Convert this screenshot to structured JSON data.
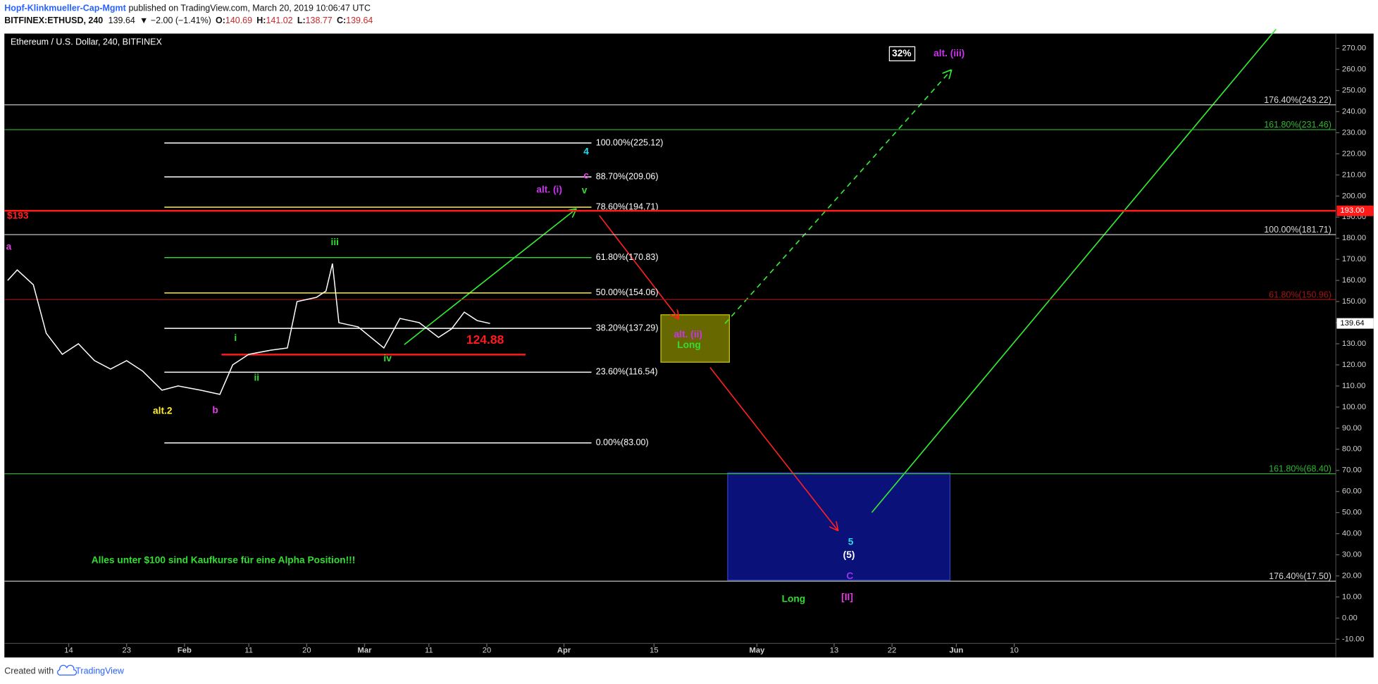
{
  "header": {
    "author": "Hopf-Klinkmueller-Cap-Mgmt",
    "published": "published on TradingView.com, March 20, 2019 10:06:47 UTC",
    "symbol": "BITFINEX:ETHUSD, 240",
    "last": 139.64,
    "change": "▼ −2.00 (−1.41%)",
    "ohlc": [
      {
        "label": "O:",
        "value": 140.69
      },
      {
        "label": "H:",
        "value": 141.02
      },
      {
        "label": "L:",
        "value": 138.77
      },
      {
        "label": "C:",
        "value": 139.64
      }
    ]
  },
  "chart_data": {
    "type": "line",
    "title": "Ethereum / U.S. Dollar, 240, BITFINEX",
    "x": [
      4.5,
      6,
      8.5,
      10.5,
      13,
      15.5,
      18,
      20.5,
      23,
      25.5,
      28.5,
      31,
      34.5,
      37.5,
      39.5,
      42,
      45.5,
      48,
      49.5,
      52.5,
      54,
      55,
      56,
      59,
      63,
      65.5,
      68.5,
      71.5,
      73.5,
      75.5,
      77.5,
      79.5
    ],
    "series": [
      {
        "color": "#ffffff",
        "values": [
          160,
          165,
          158,
          135,
          125,
          130,
          122,
          118,
          122,
          117,
          108,
          110,
          108,
          106,
          120,
          125,
          127,
          128,
          150,
          152,
          155,
          168,
          140,
          138,
          128,
          142,
          140,
          133,
          137,
          145,
          141,
          139.64
        ]
      }
    ],
    "xlim": [
      4,
      211
    ],
    "xticks": [
      14,
      23,
      {
        "value": 32,
        "label": "Feb"
      },
      {
        "value": 42,
        "label": "11"
      },
      {
        "value": 51,
        "label": "20"
      },
      {
        "value": 60,
        "label": "Mar"
      },
      {
        "value": 70,
        "label": "11"
      },
      {
        "value": 79,
        "label": "20"
      },
      {
        "value": 91,
        "label": "Apr"
      },
      {
        "value": 105,
        "label": "15"
      },
      {
        "value": 121,
        "label": "May"
      },
      {
        "value": 133,
        "label": "13"
      },
      {
        "value": 142,
        "label": "22"
      },
      {
        "value": 152,
        "label": "Jun"
      },
      {
        "value": 161,
        "label": "10"
      }
    ],
    "ylim": [
      -12,
      277
    ],
    "yticks": [
      {
        "value": -10,
        "label": "-10.00"
      },
      {
        "value": 0,
        "label": "0.00"
      },
      {
        "value": 10,
        "label": "10.00"
      },
      {
        "value": 20,
        "label": "20.00"
      },
      {
        "value": 30,
        "label": "30.00"
      },
      {
        "value": 40,
        "label": "40.00"
      },
      {
        "value": 50,
        "label": "50.00"
      },
      {
        "value": 60,
        "label": "60.00"
      },
      {
        "value": 70,
        "label": "70.00"
      },
      {
        "value": 80,
        "label": "80.00"
      },
      {
        "value": 90,
        "label": "90.00"
      },
      {
        "value": 100,
        "label": "100.00"
      },
      {
        "value": 110,
        "label": "110.00"
      },
      {
        "value": 120,
        "label": "120.00"
      },
      {
        "value": 130,
        "label": "130.00"
      },
      {
        "value": 140,
        "label": "140.00"
      },
      {
        "value": 150,
        "label": "150.00"
      },
      {
        "value": 160,
        "label": "160.00"
      },
      {
        "value": 170,
        "label": "170.00"
      },
      {
        "value": 180,
        "label": "180.00"
      },
      {
        "value": 190,
        "label": "190.00"
      },
      {
        "value": 200,
        "label": "200.00"
      },
      {
        "value": 210,
        "label": "210.00"
      },
      {
        "value": 220,
        "label": "220.00"
      },
      {
        "value": 230,
        "label": "230.00"
      },
      {
        "value": 240,
        "label": "240.00"
      },
      {
        "value": 250,
        "label": "250.00"
      },
      {
        "value": 260,
        "label": "260.00"
      },
      {
        "value": 270,
        "label": "270.00"
      }
    ],
    "price_line": {
      "value": 193,
      "label": "193.00",
      "color": "#ff1a1a"
    },
    "last_price": {
      "value": 139.64,
      "label": "139.64"
    },
    "levels": [
      {
        "value": 243.22,
        "label": "176.40%(243.22)",
        "color": "#d8d8d8"
      },
      {
        "value": 231.46,
        "label": "161.80%(231.46)",
        "color": "#2eb82e"
      },
      {
        "value": 181.71,
        "label": "100.00%(181.71)",
        "color": "#d8d8d8"
      },
      {
        "value": 150.96,
        "label": "61.80%(150.96)",
        "color": "#a31515"
      },
      {
        "value": 68.4,
        "label": "161.80%(68.40)",
        "color": "#2eb82e"
      },
      {
        "value": 17.5,
        "label": "176.40%(17.50)",
        "color": "#d8d8d8"
      }
    ],
    "fib_levels": [
      {
        "value": 225.12,
        "label": "100.00%(225.12)",
        "color": "#ffffff"
      },
      {
        "value": 209.06,
        "label": "88.70%(209.06)",
        "color": "#ffffff"
      },
      {
        "value": 194.71,
        "label": "78.60%(194.71)",
        "color": "#ffee33"
      },
      {
        "value": 170.83,
        "label": "61.80%(170.83)",
        "color": "#33dd33"
      },
      {
        "value": 154.06,
        "label": "50.00%(154.06)",
        "color": "#ffee33"
      },
      {
        "value": 137.29,
        "label": "38.20%(137.29)",
        "color": "#ffffff"
      },
      {
        "value": 116.54,
        "label": "23.60%(116.54)",
        "color": "#ffffff"
      },
      {
        "value": 83.0,
        "label": "0.00%(83.00)",
        "color": "#ffffff"
      }
    ],
    "support": {
      "value": 124.88,
      "color": "#ff1a1a"
    },
    "annotations": [
      {
        "text": "$193",
        "color": "#ff2020"
      },
      {
        "text": "a",
        "color": "#e040e0"
      },
      {
        "text": "alt.2",
        "color": "#ffee33"
      },
      {
        "text": "b",
        "color": "#e040e0"
      },
      {
        "text": "i",
        "color": "#33dd33"
      },
      {
        "text": "ii",
        "color": "#33dd33"
      },
      {
        "text": "iii",
        "color": "#33dd33"
      },
      {
        "text": "iv",
        "color": "#33dd33"
      },
      {
        "text": "v",
        "color": "#33dd33"
      },
      {
        "text": "4",
        "color": "#22ddee"
      },
      {
        "text": "c",
        "color": "#e040e0"
      },
      {
        "text": "alt. (i)",
        "color": "#cc33ee"
      },
      {
        "text": "alt. (ii)",
        "color": "#cc33ee"
      },
      {
        "text": "Long",
        "color": "#33dd33"
      },
      {
        "text": "32%",
        "color": "#ffffff"
      },
      {
        "text": "alt. (iii)",
        "color": "#cc33ee"
      },
      {
        "text": "5",
        "color": "#22ddee"
      },
      {
        "text": "(5)",
        "color": "#ffffff"
      },
      {
        "text": "C",
        "color": "#9933ee"
      },
      {
        "text": "Long",
        "color": "#33dd33"
      },
      {
        "text": "[II]",
        "color": "#e040e0"
      },
      {
        "text": "Alles unter $100 sind Kaufkurse für eine Alpha Position!!!",
        "color": "#33dd33"
      }
    ]
  },
  "footer": {
    "prefix": "Created with",
    "brand": "TradingView"
  }
}
